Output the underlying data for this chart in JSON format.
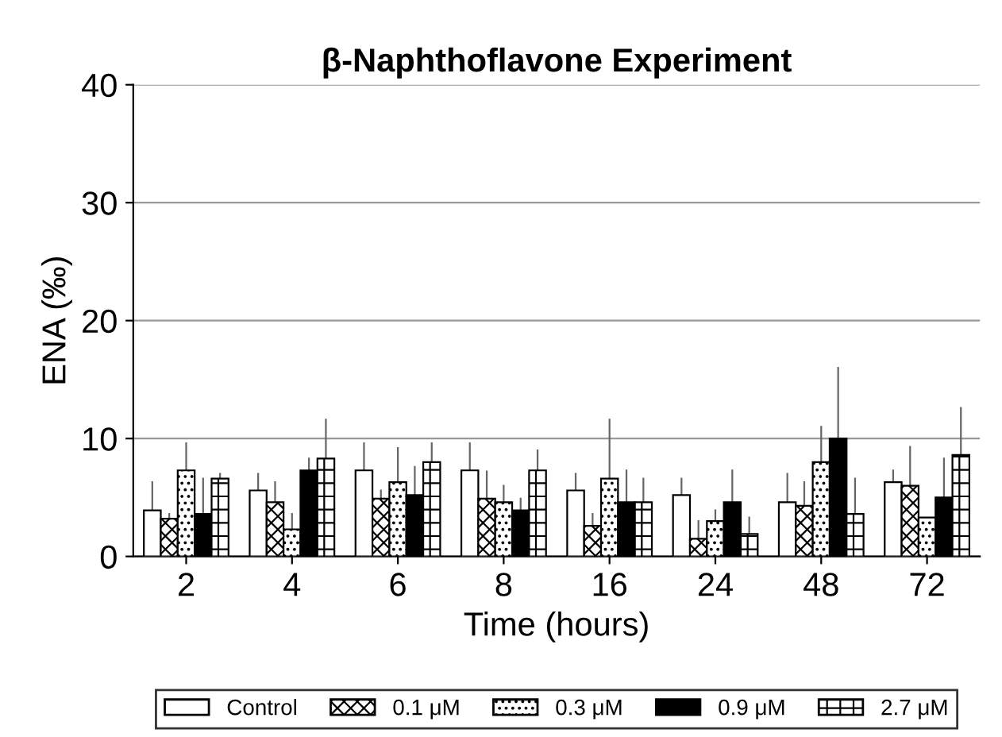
{
  "chart_data": {
    "type": "bar",
    "title": "β-Naphthoflavone Experiment",
    "xlabel": "Time (hours)",
    "ylabel": "ENA (‰)",
    "categories": [
      "2",
      "4",
      "6",
      "8",
      "16",
      "24",
      "48",
      "72"
    ],
    "series": [
      {
        "name": "Control",
        "color": "#ffffff",
        "values": [
          3.9,
          5.6,
          7.3,
          7.3,
          5.6,
          5.2,
          4.6,
          6.3
        ],
        "errors": [
          2.4,
          1.4,
          2.3,
          2.3,
          1.4,
          1.4,
          2.4,
          1.0
        ]
      },
      {
        "name": "0.1 μM",
        "color": "#000000",
        "values": [
          3.2,
          4.6,
          4.9,
          4.9,
          2.6,
          1.5,
          4.3,
          6.0
        ],
        "errors": [
          0.4,
          1.7,
          0.7,
          2.3,
          1.0,
          1.5,
          2.0,
          3.3
        ]
      },
      {
        "name": "0.3 μM",
        "color": "#000000",
        "values": [
          7.3,
          2.3,
          6.3,
          4.6,
          6.6,
          3.0,
          8.0,
          3.3
        ],
        "errors": [
          2.3,
          1.3,
          2.9,
          1.4,
          5.0,
          0.9,
          3.0,
          null
        ]
      },
      {
        "name": "0.9 μM",
        "color": "#000000",
        "values": [
          3.6,
          7.3,
          5.2,
          3.9,
          4.6,
          4.6,
          10.0,
          5.0
        ],
        "errors": [
          3.0,
          1.0,
          2.4,
          1.0,
          2.7,
          2.7,
          6.0,
          3.3
        ]
      },
      {
        "name": "2.7 μM",
        "color": "#000000",
        "values": [
          6.6,
          8.3,
          8.0,
          7.3,
          4.6,
          1.9,
          3.6,
          8.6
        ],
        "errors": [
          0.4,
          3.3,
          1.6,
          1.7,
          2.0,
          1.4,
          3.0,
          4.0
        ]
      }
    ],
    "ylim": [
      0,
      40
    ],
    "yticks": [
      0,
      10,
      20,
      30,
      40
    ],
    "grid": "y",
    "legend": "bottom"
  }
}
